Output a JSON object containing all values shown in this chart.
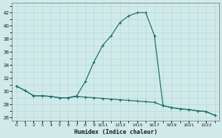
{
  "title": "",
  "xlabel": "Humidex (Indice chaleur)",
  "ylabel": "",
  "bg_color": "#d0eaea",
  "line_color": "#1a6b6b",
  "grid_color": "#b0d8d8",
  "xlim": [
    -0.5,
    23.5
  ],
  "ylim": [
    25.5,
    43.5
  ],
  "xtick_labels": [
    "0",
    "1",
    "2",
    "3",
    "4",
    "5",
    "6",
    "7",
    "8",
    "9",
    "1011",
    "1213",
    "1415",
    "1617",
    "1819",
    "2021",
    "2223"
  ],
  "yticks": [
    26,
    28,
    30,
    32,
    34,
    36,
    38,
    40,
    42
  ],
  "curve1_x": [
    0,
    1,
    2,
    3,
    4,
    5,
    6,
    7,
    8,
    9,
    10,
    11,
    12,
    13,
    14,
    15,
    16,
    17,
    18,
    19,
    20,
    21,
    22,
    23
  ],
  "curve1_y": [
    30.8,
    30.1,
    29.3,
    29.3,
    29.2,
    29.0,
    29.0,
    29.3,
    31.5,
    34.5,
    37.0,
    38.5,
    40.5,
    41.5,
    42.0,
    42.0,
    38.5,
    27.8,
    27.5,
    27.3,
    27.2,
    27.0,
    26.9,
    26.3
  ],
  "curve2_x": [
    0,
    1,
    2,
    3,
    4,
    5,
    6,
    7,
    8,
    9,
    10,
    11,
    12,
    13,
    14,
    15,
    16,
    17,
    18,
    19,
    20,
    21,
    22,
    23
  ],
  "curve2_y": [
    30.8,
    30.1,
    29.3,
    29.3,
    29.2,
    29.0,
    29.0,
    29.2,
    29.1,
    29.0,
    28.9,
    28.8,
    28.7,
    28.6,
    28.5,
    28.4,
    28.3,
    27.8,
    27.5,
    27.3,
    27.2,
    27.0,
    26.9,
    26.3
  ]
}
